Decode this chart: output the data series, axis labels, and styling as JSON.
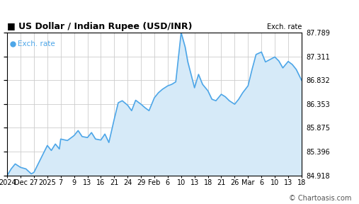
{
  "title": "US Dollar / Indian Rupee (USD/INR)",
  "legend_label": "Exch. rate",
  "right_axis_label": "Exch. rate",
  "watermark": "© Chartoasis.com",
  "title_color": "#000000",
  "legend_color": "#4da6e8",
  "line_color": "#4da6e8",
  "fill_color": "#d6eaf8",
  "background_color": "#ffffff",
  "grid_color": "#cccccc",
  "ylim": [
    84.918,
    87.789
  ],
  "yticks": [
    84.918,
    85.396,
    85.875,
    86.353,
    86.832,
    87.311,
    87.789
  ],
  "xtick_labels": [
    "2024",
    "Dec",
    "27",
    "2025",
    "7",
    "9",
    "13",
    "16",
    "21",
    "24",
    "29",
    "Feb",
    "6",
    "10",
    "13",
    "18",
    "21",
    "26",
    "Mar",
    "6",
    "10",
    "13",
    "18"
  ],
  "trace_x": [
    0,
    0.3,
    0.6,
    1.0,
    1.4,
    1.8,
    2.0,
    2.5,
    3.0,
    3.3,
    3.6,
    3.9,
    4.0,
    4.5,
    5.0,
    5.3,
    5.6,
    6.0,
    6.3,
    6.6,
    7.0,
    7.3,
    7.6,
    8.0,
    8.3,
    8.6,
    9.0,
    9.3,
    9.6,
    10.0,
    10.3,
    10.6,
    11.0,
    11.3,
    11.6,
    12.0,
    12.3,
    12.6,
    13.0,
    13.3,
    13.5,
    14.0,
    14.3,
    14.6,
    15.0,
    15.3,
    15.6,
    16.0,
    16.3,
    16.6,
    17.0,
    17.3,
    17.6,
    18.0,
    18.3,
    18.6,
    19.0,
    19.3,
    20.0,
    20.3,
    20.6,
    21.0,
    21.3,
    21.6,
    22.0
  ],
  "trace_y": [
    84.918,
    85.05,
    85.15,
    85.08,
    85.05,
    84.95,
    84.98,
    85.25,
    85.52,
    85.42,
    85.55,
    85.45,
    85.65,
    85.62,
    85.72,
    85.82,
    85.7,
    85.68,
    85.78,
    85.65,
    85.63,
    85.75,
    85.58,
    86.05,
    86.38,
    86.42,
    86.33,
    86.22,
    86.43,
    86.35,
    86.28,
    86.22,
    86.48,
    86.58,
    86.65,
    86.72,
    86.75,
    86.8,
    87.789,
    87.5,
    87.2,
    86.68,
    86.95,
    86.75,
    86.62,
    86.45,
    86.42,
    86.55,
    86.5,
    86.42,
    86.35,
    86.45,
    86.58,
    86.72,
    87.05,
    87.35,
    87.4,
    87.2,
    87.3,
    87.22,
    87.08,
    87.21,
    87.15,
    87.05,
    86.832
  ],
  "title_fontsize": 9,
  "tick_fontsize": 7,
  "watermark_fontsize": 7
}
